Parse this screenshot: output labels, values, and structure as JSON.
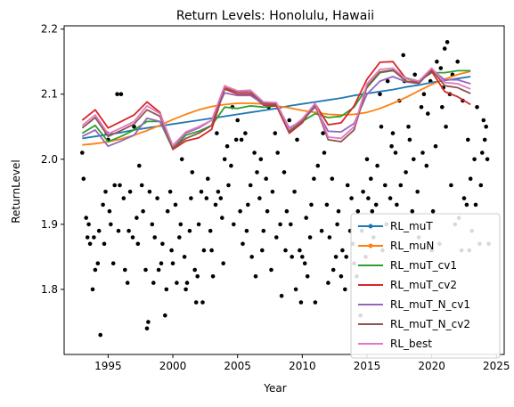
{
  "chart_data": {
    "type": "line",
    "title": "Return Levels: Honolulu, Hawaii",
    "xlabel": "Year",
    "ylabel": "ReturnLevel",
    "xlim": [
      1991.6,
      2025.6
    ],
    "ylim": [
      1.7,
      2.205
    ],
    "xticks": [
      1995,
      2000,
      2005,
      2010,
      2015,
      2020,
      2025
    ],
    "yticks": [
      1.8,
      1.9,
      2.0,
      2.1,
      2.2
    ],
    "ytick_labels": [
      "1.8",
      "1.9",
      "2.0",
      "2.1",
      "2.2"
    ],
    "grid": false,
    "legend_position": "lower-right",
    "x": [
      1993,
      1994,
      1995,
      1996,
      1997,
      1998,
      1999,
      2000,
      2001,
      2002,
      2003,
      2004,
      2005,
      2006,
      2007,
      2008,
      2009,
      2010,
      2011,
      2012,
      2013,
      2014,
      2015,
      2016,
      2017,
      2018,
      2019,
      2020,
      2021,
      2022,
      2023
    ],
    "series": [
      {
        "name": "RL_muT",
        "color": "#1f77b4",
        "values": [
          2.032,
          2.035,
          2.038,
          2.041,
          2.045,
          2.048,
          2.051,
          2.054,
          2.057,
          2.06,
          2.063,
          2.066,
          2.069,
          2.072,
          2.075,
          2.078,
          2.082,
          2.085,
          2.088,
          2.091,
          2.094,
          2.098,
          2.101,
          2.104,
          2.107,
          2.111,
          2.114,
          2.118,
          2.121,
          2.124,
          2.127
        ]
      },
      {
        "name": "RL_muN",
        "color": "#ff7f0e",
        "values": [
          2.022,
          2.024,
          2.027,
          2.031,
          2.037,
          2.044,
          2.052,
          2.061,
          2.069,
          2.076,
          2.081,
          2.084,
          2.086,
          2.086,
          2.085,
          2.082,
          2.079,
          2.075,
          2.072,
          2.069,
          2.068,
          2.069,
          2.072,
          2.078,
          2.086,
          2.095,
          2.105,
          2.115,
          2.123,
          2.13,
          2.135
        ]
      },
      {
        "name": "RL_muT_cv1",
        "color": "#2ca02c",
        "values": [
          2.04,
          2.052,
          2.027,
          2.035,
          2.045,
          2.058,
          2.058,
          2.016,
          2.037,
          2.043,
          2.052,
          2.08,
          2.078,
          2.082,
          2.08,
          2.082,
          2.045,
          2.058,
          2.07,
          2.064,
          2.066,
          2.08,
          2.11,
          2.133,
          2.136,
          2.125,
          2.12,
          2.133,
          2.133,
          2.136,
          2.136
        ]
      },
      {
        "name": "RL_muT_cv2",
        "color": "#d62728",
        "values": [
          2.06,
          2.076,
          2.048,
          2.058,
          2.068,
          2.088,
          2.072,
          2.015,
          2.028,
          2.033,
          2.046,
          2.108,
          2.1,
          2.1,
          2.083,
          2.082,
          2.04,
          2.056,
          2.085,
          2.053,
          2.056,
          2.082,
          2.123,
          2.149,
          2.15,
          2.124,
          2.118,
          2.135,
          2.104,
          2.096,
          2.084
        ]
      },
      {
        "name": "RL_muT_N_cv1",
        "color": "#9467bd",
        "values": [
          2.035,
          2.045,
          2.02,
          2.028,
          2.037,
          2.063,
          2.058,
          2.02,
          2.04,
          2.048,
          2.06,
          2.102,
          2.098,
          2.098,
          2.085,
          2.085,
          2.048,
          2.06,
          2.08,
          2.043,
          2.042,
          2.055,
          2.1,
          2.12,
          2.127,
          2.119,
          2.116,
          2.138,
          2.122,
          2.122,
          2.116
        ]
      },
      {
        "name": "RL_muT_N_cv2",
        "color": "#8c564b",
        "values": [
          2.048,
          2.064,
          2.035,
          2.044,
          2.054,
          2.076,
          2.066,
          2.017,
          2.032,
          2.04,
          2.052,
          2.11,
          2.103,
          2.103,
          2.086,
          2.084,
          2.042,
          2.058,
          2.083,
          2.03,
          2.027,
          2.045,
          2.112,
          2.134,
          2.137,
          2.12,
          2.117,
          2.138,
          2.113,
          2.11,
          2.101
        ]
      },
      {
        "name": "RL_best",
        "color": "#e377c2",
        "values": [
          2.052,
          2.068,
          2.039,
          2.048,
          2.058,
          2.082,
          2.07,
          2.021,
          2.042,
          2.05,
          2.06,
          2.113,
          2.105,
          2.106,
          2.088,
          2.087,
          2.046,
          2.062,
          2.086,
          2.034,
          2.032,
          2.05,
          2.116,
          2.138,
          2.14,
          2.124,
          2.12,
          2.14,
          2.118,
          2.116,
          2.108
        ]
      }
    ],
    "scatter": {
      "color": "#000000",
      "points": [
        [
          1993.0,
          2.01
        ],
        [
          1993.1,
          1.97
        ],
        [
          1993.3,
          1.91
        ],
        [
          1993.4,
          1.88
        ],
        [
          1993.5,
          1.9
        ],
        [
          1993.6,
          1.87
        ],
        [
          1993.8,
          1.8
        ],
        [
          1993.9,
          1.88
        ],
        [
          1994.0,
          1.83
        ],
        [
          1994.2,
          1.84
        ],
        [
          1994.3,
          1.89
        ],
        [
          1994.4,
          1.73
        ],
        [
          1994.6,
          1.93
        ],
        [
          1994.7,
          1.87
        ],
        [
          1994.8,
          1.95
        ],
        [
          1994.9,
          2.04
        ],
        [
          1995.0,
          2.03
        ],
        [
          1995.1,
          1.92
        ],
        [
          1995.2,
          1.9
        ],
        [
          1995.4,
          1.84
        ],
        [
          1995.5,
          1.96
        ],
        [
          1995.7,
          2.1
        ],
        [
          1995.8,
          1.89
        ],
        [
          1995.9,
          1.96
        ],
        [
          1996.0,
          2.1
        ],
        [
          1996.2,
          1.94
        ],
        [
          1996.3,
          1.83
        ],
        [
          1996.5,
          1.81
        ],
        [
          1996.6,
          1.89
        ],
        [
          1996.7,
          1.95
        ],
        [
          1996.9,
          1.88
        ],
        [
          1997.0,
          2.05
        ],
        [
          1997.2,
          1.91
        ],
        [
          1997.3,
          1.87
        ],
        [
          1997.4,
          1.99
        ],
        [
          1997.6,
          1.96
        ],
        [
          1997.7,
          1.92
        ],
        [
          1997.9,
          1.83
        ],
        [
          1998.0,
          1.74
        ],
        [
          1998.1,
          1.75
        ],
        [
          1998.2,
          1.95
        ],
        [
          1998.4,
          1.9
        ],
        [
          1998.5,
          1.81
        ],
        [
          1998.6,
          1.88
        ],
        [
          1998.8,
          1.94
        ],
        [
          1998.9,
          1.83
        ],
        [
          1999.1,
          1.84
        ],
        [
          1999.2,
          1.87
        ],
        [
          1999.4,
          1.76
        ],
        [
          1999.5,
          1.8
        ],
        [
          1999.6,
          1.92
        ],
        [
          1999.8,
          1.95
        ],
        [
          1999.9,
          1.86
        ],
        [
          2000.0,
          1.84
        ],
        [
          2000.2,
          1.93
        ],
        [
          2000.3,
          1.81
        ],
        [
          2000.5,
          1.88
        ],
        [
          2000.6,
          1.9
        ],
        [
          2000.7,
          2.0
        ],
        [
          2000.9,
          1.85
        ],
        [
          2001.0,
          1.8
        ],
        [
          2001.1,
          1.81
        ],
        [
          2001.3,
          1.89
        ],
        [
          2001.4,
          1.94
        ],
        [
          2001.5,
          1.98
        ],
        [
          2001.7,
          1.83
        ],
        [
          2001.8,
          1.78
        ],
        [
          2001.9,
          1.82
        ],
        [
          2002.0,
          1.9
        ],
        [
          2002.2,
          1.95
        ],
        [
          2002.3,
          1.78
        ],
        [
          2002.4,
          1.86
        ],
        [
          2002.6,
          1.94
        ],
        [
          2002.7,
          1.97
        ],
        [
          2002.9,
          1.89
        ],
        [
          2003.0,
          1.86
        ],
        [
          2003.1,
          1.82
        ],
        [
          2003.3,
          1.93
        ],
        [
          2003.4,
          2.04
        ],
        [
          2003.5,
          1.95
        ],
        [
          2003.7,
          1.94
        ],
        [
          2003.8,
          1.91
        ],
        [
          2003.9,
          1.84
        ],
        [
          2004.0,
          2.0
        ],
        [
          2004.2,
          2.02
        ],
        [
          2004.3,
          1.96
        ],
        [
          2004.5,
          1.99
        ],
        [
          2004.6,
          2.08
        ],
        [
          2004.7,
          1.9
        ],
        [
          2004.9,
          2.03
        ],
        [
          2005.0,
          2.06
        ],
        [
          2005.2,
          1.92
        ],
        [
          2005.3,
          2.03
        ],
        [
          2005.4,
          1.87
        ],
        [
          2005.6,
          2.04
        ],
        [
          2005.7,
          1.89
        ],
        [
          2005.8,
          1.93
        ],
        [
          2006.0,
          1.96
        ],
        [
          2006.1,
          1.85
        ],
        [
          2006.3,
          2.01
        ],
        [
          2006.4,
          1.82
        ],
        [
          2006.5,
          1.98
        ],
        [
          2006.7,
          1.94
        ],
        [
          2006.8,
          2.0
        ],
        [
          2006.9,
          1.86
        ],
        [
          2007.0,
          1.89
        ],
        [
          2007.2,
          1.97
        ],
        [
          2007.3,
          1.92
        ],
        [
          2007.4,
          2.08
        ],
        [
          2007.6,
          1.83
        ],
        [
          2007.7,
          1.95
        ],
        [
          2007.9,
          2.04
        ],
        [
          2008.0,
          1.88
        ],
        [
          2008.1,
          2.01
        ],
        [
          2008.3,
          1.9
        ],
        [
          2008.4,
          1.79
        ],
        [
          2008.6,
          1.98
        ],
        [
          2008.7,
          1.86
        ],
        [
          2008.8,
          1.92
        ],
        [
          2009.0,
          2.06
        ],
        [
          2009.1,
          1.9
        ],
        [
          2009.2,
          1.85
        ],
        [
          2009.4,
          1.95
        ],
        [
          2009.5,
          1.8
        ],
        [
          2009.6,
          2.03
        ],
        [
          2009.8,
          1.86
        ],
        [
          2009.9,
          1.78
        ],
        [
          2010.0,
          1.85
        ],
        [
          2010.2,
          1.84
        ],
        [
          2010.3,
          1.91
        ],
        [
          2010.4,
          1.82
        ],
        [
          2010.6,
          1.88
        ],
        [
          2010.7,
          1.93
        ],
        [
          2010.9,
          1.97
        ],
        [
          2011.0,
          1.78
        ],
        [
          2011.2,
          1.99
        ],
        [
          2011.3,
          2.07
        ],
        [
          2011.5,
          1.89
        ],
        [
          2011.6,
          2.04
        ],
        [
          2011.7,
          2.01
        ],
        [
          2011.9,
          1.93
        ],
        [
          2012.0,
          1.81
        ],
        [
          2012.1,
          1.88
        ],
        [
          2012.3,
          1.97
        ],
        [
          2012.4,
          1.83
        ],
        [
          2012.6,
          1.85
        ],
        [
          2012.7,
          1.9
        ],
        [
          2012.8,
          1.92
        ],
        [
          2013.0,
          1.82
        ],
        [
          2013.1,
          1.86
        ],
        [
          2013.3,
          1.8
        ],
        [
          2013.4,
          1.85
        ],
        [
          2013.5,
          1.96
        ],
        [
          2013.7,
          1.89
        ],
        [
          2013.8,
          1.94
        ],
        [
          2013.9,
          1.87
        ],
        [
          2014.0,
          1.84
        ],
        [
          2014.2,
          1.82
        ],
        [
          2014.3,
          1.92
        ],
        [
          2014.5,
          1.76
        ],
        [
          2014.6,
          1.89
        ],
        [
          2014.7,
          1.95
        ],
        [
          2014.9,
          1.85
        ],
        [
          2015.0,
          2.0
        ],
        [
          2015.1,
          1.94
        ],
        [
          2015.3,
          1.97
        ],
        [
          2015.4,
          1.92
        ],
        [
          2015.5,
          1.88
        ],
        [
          2015.7,
          1.93
        ],
        [
          2015.8,
          1.99
        ],
        [
          2016.0,
          2.1
        ],
        [
          2016.1,
          2.05
        ],
        [
          2016.2,
          1.86
        ],
        [
          2016.4,
          1.96
        ],
        [
          2016.5,
          1.9
        ],
        [
          2016.6,
          2.12
        ],
        [
          2016.8,
          1.94
        ],
        [
          2016.9,
          2.02
        ],
        [
          2017.0,
          2.04
        ],
        [
          2017.2,
          2.01
        ],
        [
          2017.3,
          1.93
        ],
        [
          2017.5,
          2.09
        ],
        [
          2017.6,
          1.96
        ],
        [
          2017.8,
          2.16
        ],
        [
          2017.9,
          2.12
        ],
        [
          2018.0,
          1.98
        ],
        [
          2018.2,
          2.05
        ],
        [
          2018.3,
          2.03
        ],
        [
          2018.5,
          1.92
        ],
        [
          2018.6,
          2.0
        ],
        [
          2018.7,
          2.13
        ],
        [
          2018.9,
          1.95
        ],
        [
          2019.0,
          1.88
        ],
        [
          2019.2,
          2.08
        ],
        [
          2019.3,
          2.01
        ],
        [
          2019.4,
          2.1
        ],
        [
          2019.6,
          1.99
        ],
        [
          2019.7,
          2.07
        ],
        [
          2019.9,
          2.12
        ],
        [
          2020.0,
          1.86
        ],
        [
          2020.1,
          1.92
        ],
        [
          2020.3,
          2.02
        ],
        [
          2020.4,
          2.15
        ],
        [
          2020.6,
          1.87
        ],
        [
          2020.7,
          2.14
        ],
        [
          2020.8,
          2.08
        ],
        [
          2020.9,
          2.11
        ],
        [
          2021.0,
          2.17
        ],
        [
          2021.1,
          2.05
        ],
        [
          2021.2,
          2.18
        ],
        [
          2021.4,
          2.1
        ],
        [
          2021.5,
          1.96
        ],
        [
          2021.6,
          2.13
        ],
        [
          2021.8,
          1.9
        ],
        [
          2022.0,
          2.15
        ],
        [
          2022.1,
          1.91
        ],
        [
          2022.3,
          1.86
        ],
        [
          2022.4,
          2.09
        ],
        [
          2022.5,
          1.94
        ],
        [
          2022.7,
          1.93
        ],
        [
          2022.8,
          2.03
        ],
        [
          2022.9,
          1.86
        ],
        [
          2023.0,
          1.97
        ],
        [
          2023.1,
          1.89
        ],
        [
          2023.3,
          2.0
        ],
        [
          2023.4,
          1.93
        ],
        [
          2023.5,
          2.08
        ],
        [
          2023.7,
          1.87
        ],
        [
          2023.8,
          1.96
        ],
        [
          2023.9,
          2.01
        ],
        [
          2024.0,
          2.06
        ],
        [
          2024.1,
          2.03
        ],
        [
          2024.2,
          2.05
        ],
        [
          2024.3,
          2.0
        ],
        [
          2024.4,
          1.87
        ]
      ]
    }
  }
}
